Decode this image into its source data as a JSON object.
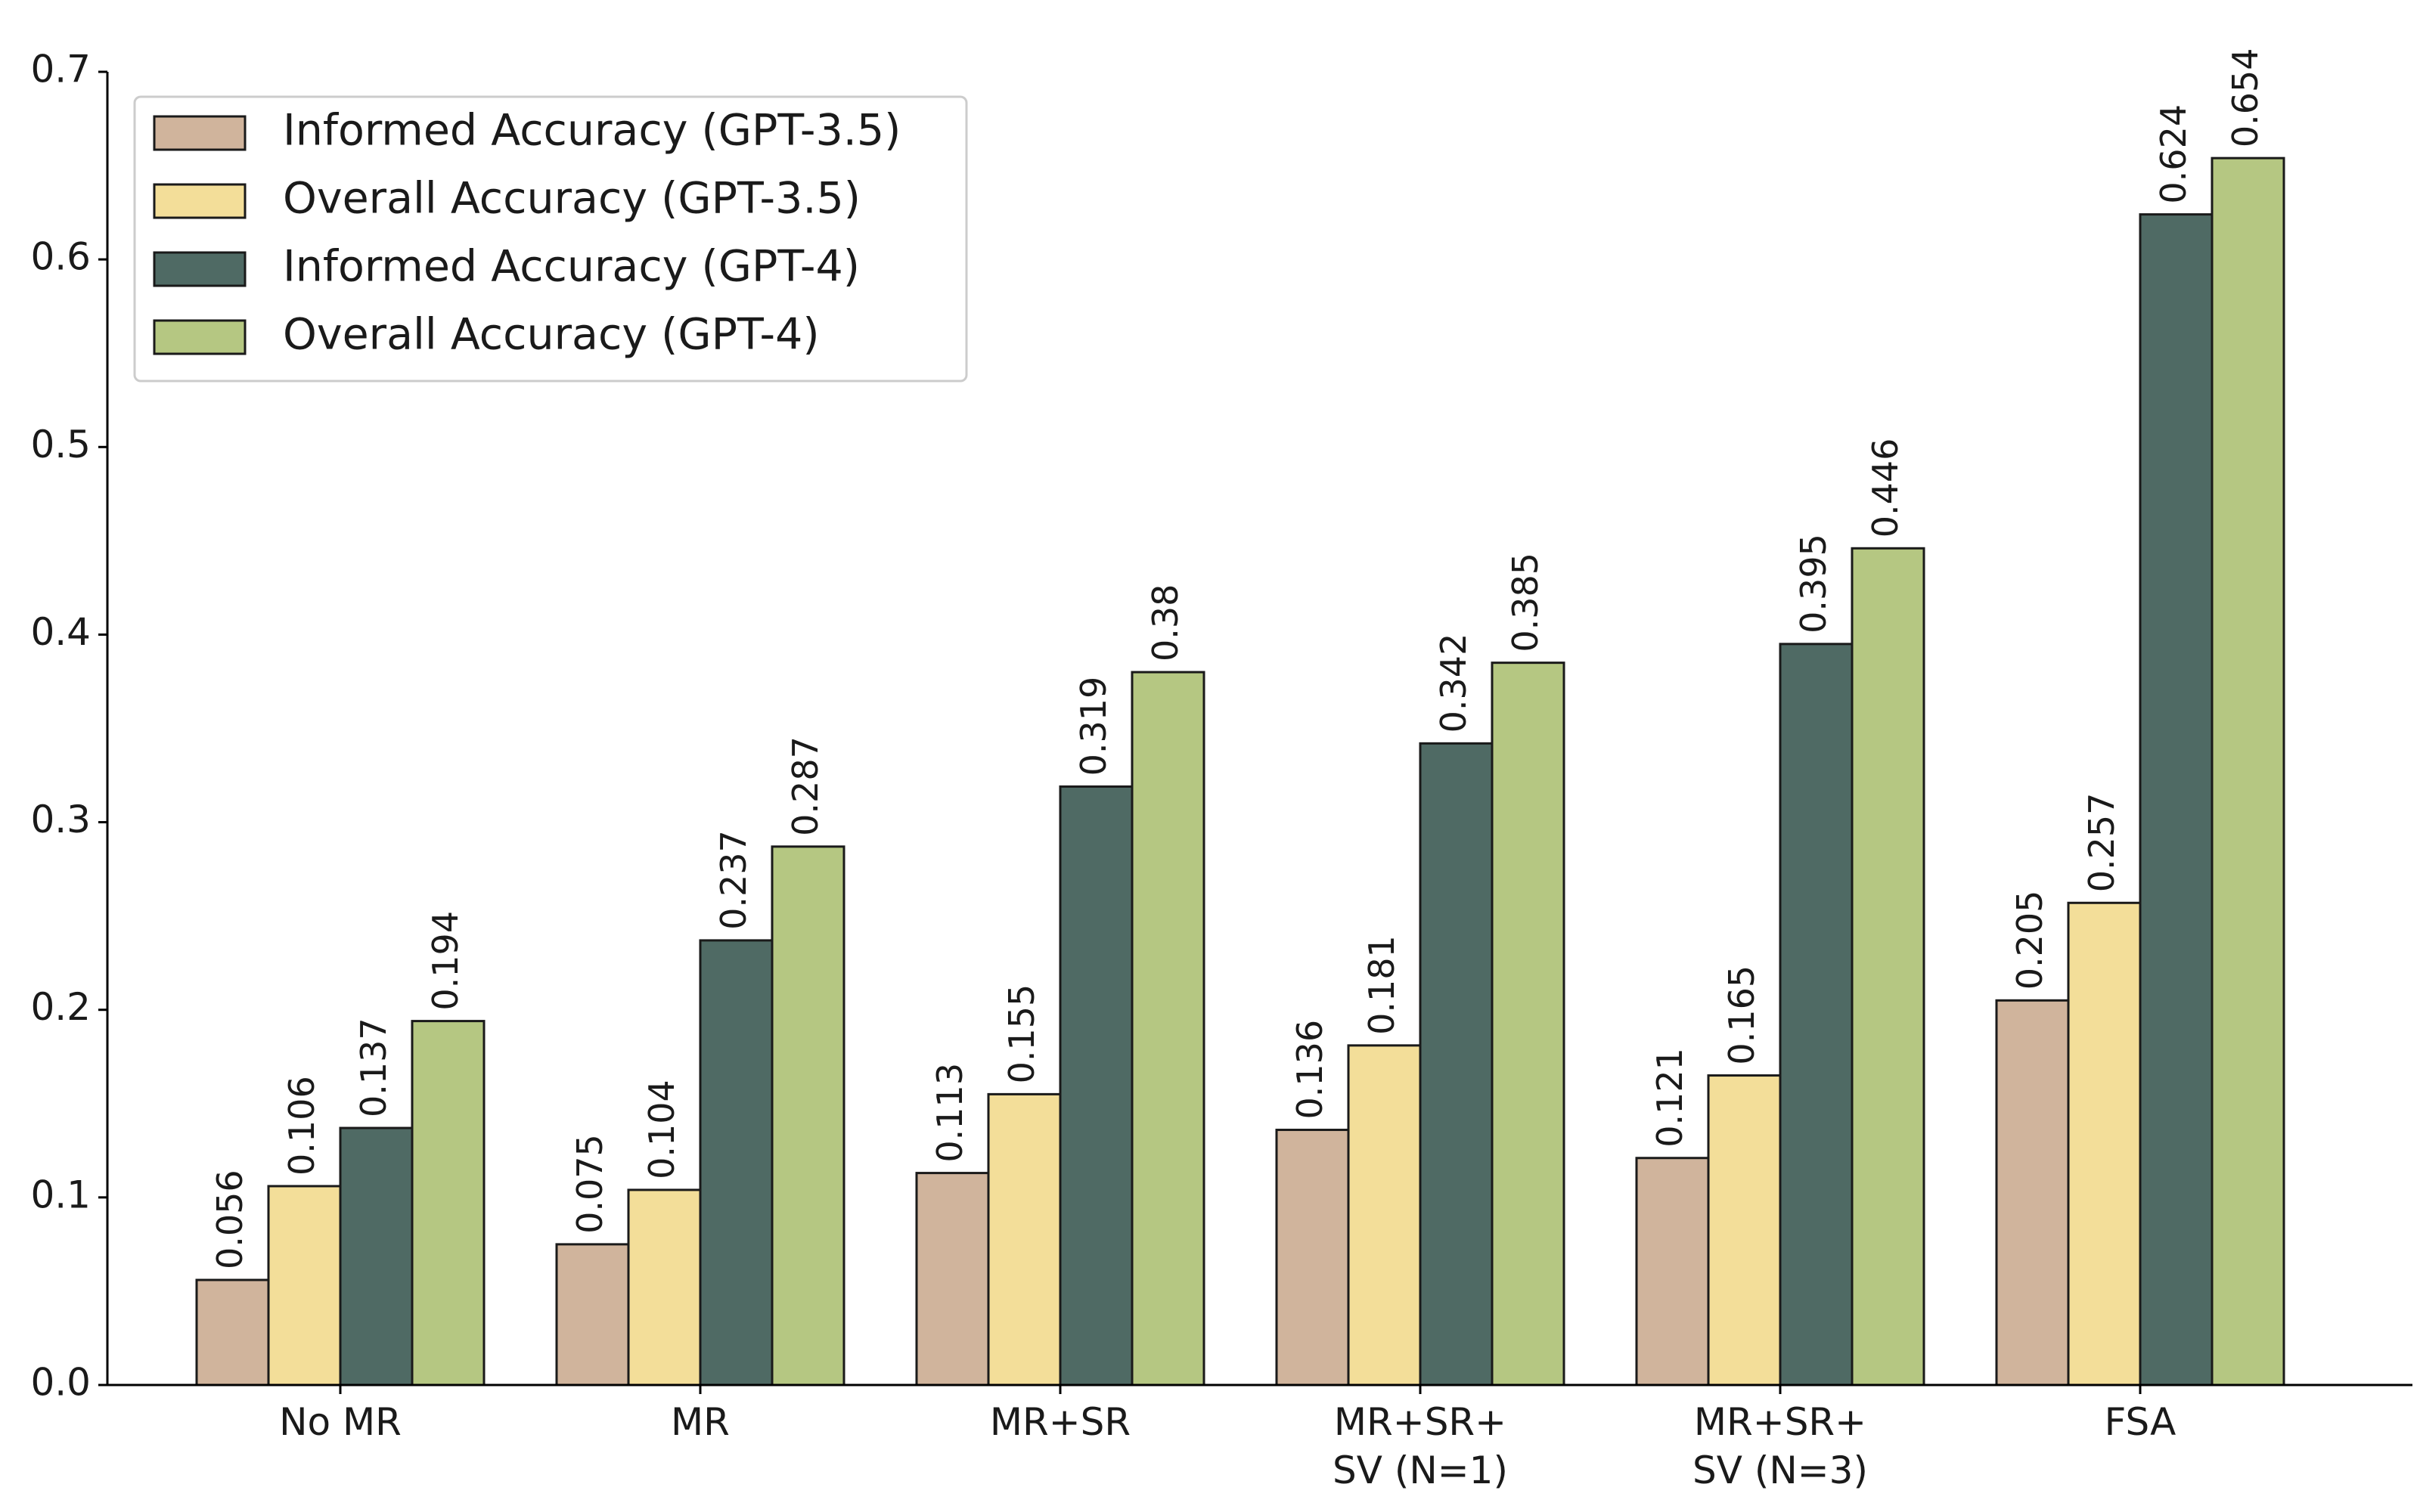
{
  "chart_data": {
    "type": "bar",
    "title": "",
    "xlabel": "",
    "ylabel": "",
    "ylim": [
      0,
      0.7
    ],
    "yticks": [
      0.0,
      0.1,
      0.2,
      0.3,
      0.4,
      0.5,
      0.6,
      0.7
    ],
    "ytick_labels": [
      "0.0",
      "0.1",
      "0.2",
      "0.3",
      "0.4",
      "0.5",
      "0.6",
      "0.7"
    ],
    "categories": [
      [
        "No MR"
      ],
      [
        "MR"
      ],
      [
        "MR+SR"
      ],
      [
        "MR+SR+",
        "SV (N=1)"
      ],
      [
        "MR+SR+",
        "SV (N=3)"
      ],
      [
        "FSA"
      ]
    ],
    "series": [
      {
        "name": "Informed Accuracy (GPT-3.5)",
        "color": "#d0b49c",
        "values": [
          0.056,
          0.075,
          0.113,
          0.136,
          0.121,
          0.205
        ],
        "labels": [
          "0.056",
          "0.075",
          "0.113",
          "0.136",
          "0.121",
          "0.205"
        ]
      },
      {
        "name": "Overall Accuracy (GPT-3.5)",
        "color": "#f3de99",
        "values": [
          0.106,
          0.104,
          0.155,
          0.181,
          0.165,
          0.257
        ],
        "labels": [
          "0.106",
          "0.104",
          "0.155",
          "0.181",
          "0.165",
          "0.257"
        ]
      },
      {
        "name": "Informed Accuracy (GPT-4)",
        "color": "#4f6a64",
        "values": [
          0.137,
          0.237,
          0.319,
          0.342,
          0.395,
          0.624
        ],
        "labels": [
          "0.137",
          "0.237",
          "0.319",
          "0.342",
          "0.395",
          "0.624"
        ]
      },
      {
        "name": "Overall Accuracy (GPT-4)",
        "color": "#b5c782",
        "values": [
          0.194,
          0.287,
          0.38,
          0.385,
          0.446,
          0.654
        ],
        "labels": [
          "0.194",
          "0.287",
          "0.38",
          "0.385",
          "0.446",
          "0.654"
        ]
      }
    ],
    "legend_position": "top-left",
    "grid": false
  }
}
